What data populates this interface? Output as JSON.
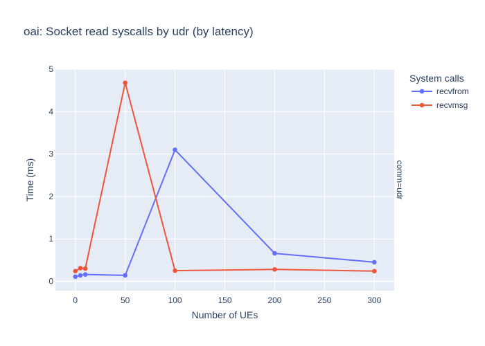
{
  "chart_data": {
    "type": "line",
    "title": "oai: Socket read syscalls by udr (by latency)",
    "xlabel": "Number of UEs",
    "ylabel": "Time (ms)",
    "xlim": [
      -20,
      320
    ],
    "ylim": [
      -0.22,
      5.0
    ],
    "x_ticks": [
      0,
      50,
      100,
      150,
      200,
      250,
      300
    ],
    "y_ticks": [
      0,
      1,
      2,
      3,
      4,
      5
    ],
    "grid": true,
    "legend": {
      "title": "System calls",
      "placement": "top-right"
    },
    "facet_label": "comm=udr",
    "series": [
      {
        "name": "recvfrom",
        "color": "#636efa",
        "x": [
          0,
          5,
          10,
          50,
          100,
          200,
          300
        ],
        "y": [
          0.11,
          0.14,
          0.16,
          0.14,
          3.1,
          0.66,
          0.45
        ]
      },
      {
        "name": "recvmsg",
        "color": "#ef553b",
        "x": [
          0,
          5,
          10,
          50,
          100,
          200,
          300
        ],
        "y": [
          0.24,
          0.31,
          0.3,
          4.68,
          0.25,
          0.28,
          0.24
        ]
      }
    ],
    "colors": {
      "plot_bg": "#e5ecf6",
      "grid": "#ffffff",
      "text": "#2a3f5f"
    }
  }
}
